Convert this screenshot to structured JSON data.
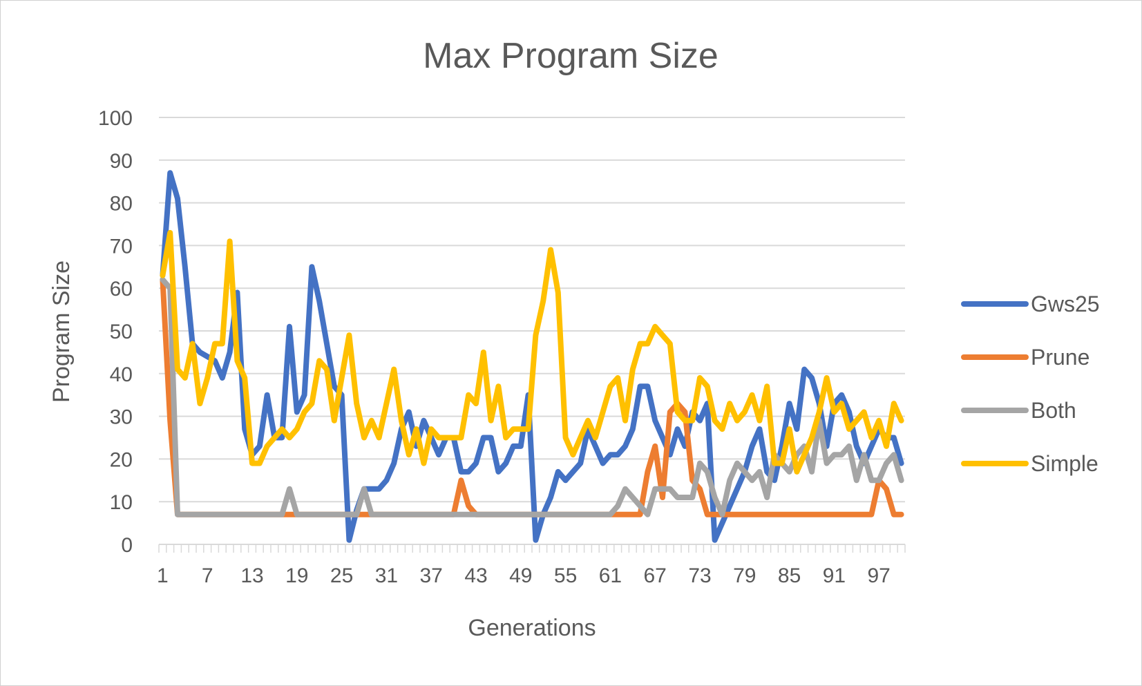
{
  "chart_data": {
    "type": "line",
    "title": "Max Program Size",
    "xlabel": "Generations",
    "ylabel": "Program Size",
    "ylim": [
      0,
      100
    ],
    "y_ticks": [
      "0",
      "10",
      "20",
      "30",
      "40",
      "50",
      "60",
      "70",
      "80",
      "90",
      "100"
    ],
    "x_range": [
      1,
      100
    ],
    "x_tick_labels": [
      "1",
      "7",
      "13",
      "19",
      "25",
      "31",
      "37",
      "43",
      "49",
      "55",
      "61",
      "67",
      "73",
      "79",
      "85",
      "91",
      "97"
    ],
    "grid": true,
    "legend_position": "right",
    "series": [
      {
        "name": "Gws25",
        "color": "#4472C4",
        "values": [
          63,
          87,
          81,
          65,
          47,
          45,
          44,
          43,
          39,
          45,
          59,
          27,
          21,
          23,
          35,
          25,
          25,
          51,
          31,
          35,
          65,
          57,
          47,
          37,
          35,
          1,
          8,
          13,
          13,
          13,
          15,
          19,
          27,
          31,
          23,
          29,
          25,
          21,
          25,
          25,
          17,
          17,
          19,
          25,
          25,
          17,
          19,
          23,
          23,
          35,
          1,
          7,
          11,
          17,
          15,
          17,
          19,
          27,
          23,
          19,
          21,
          21,
          23,
          27,
          37,
          37,
          29,
          25,
          21,
          27,
          23,
          31,
          29,
          33,
          1,
          5,
          9,
          13,
          17,
          23,
          27,
          17,
          15,
          23,
          33,
          27,
          41,
          39,
          33,
          23,
          33,
          35,
          31,
          23,
          19,
          23,
          27,
          25,
          25,
          19
        ]
      },
      {
        "name": "Prune",
        "color": "#ED7D31",
        "values": [
          62,
          29,
          7,
          7,
          7,
          7,
          7,
          7,
          7,
          7,
          7,
          7,
          7,
          7,
          7,
          7,
          7,
          7,
          7,
          7,
          7,
          7,
          7,
          7,
          7,
          7,
          7,
          7,
          7,
          7,
          7,
          7,
          7,
          7,
          7,
          7,
          7,
          7,
          7,
          7,
          15,
          9,
          7,
          7,
          7,
          7,
          7,
          7,
          7,
          7,
          7,
          7,
          7,
          7,
          7,
          7,
          7,
          7,
          7,
          7,
          7,
          7,
          7,
          7,
          7,
          17,
          23,
          11,
          31,
          33,
          31,
          15,
          13,
          7,
          7,
          7,
          7,
          7,
          7,
          7,
          7,
          7,
          7,
          7,
          7,
          7,
          7,
          7,
          7,
          7,
          7,
          7,
          7,
          7,
          7,
          7,
          15,
          13,
          7,
          7
        ]
      },
      {
        "name": "Both",
        "color": "#A5A5A5",
        "values": [
          62,
          60,
          7,
          7,
          7,
          7,
          7,
          7,
          7,
          7,
          7,
          7,
          7,
          7,
          7,
          7,
          7,
          13,
          7,
          7,
          7,
          7,
          7,
          7,
          7,
          7,
          7,
          13,
          7,
          7,
          7,
          7,
          7,
          7,
          7,
          7,
          7,
          7,
          7,
          7,
          7,
          7,
          7,
          7,
          7,
          7,
          7,
          7,
          7,
          7,
          7,
          7,
          7,
          7,
          7,
          7,
          7,
          7,
          7,
          7,
          7,
          9,
          13,
          11,
          9,
          7,
          13,
          13,
          13,
          11,
          11,
          11,
          19,
          17,
          11,
          7,
          15,
          19,
          17,
          15,
          17,
          11,
          21,
          19,
          17,
          21,
          23,
          17,
          29,
          19,
          21,
          21,
          23,
          15,
          21,
          15,
          15,
          19,
          21,
          15
        ]
      },
      {
        "name": "Simple",
        "color": "#FFC000",
        "values": [
          63,
          73,
          41,
          39,
          47,
          33,
          39,
          47,
          47,
          71,
          43,
          39,
          19,
          19,
          23,
          25,
          27,
          25,
          27,
          31,
          33,
          43,
          41,
          29,
          39,
          49,
          33,
          25,
          29,
          25,
          33,
          41,
          29,
          21,
          27,
          19,
          27,
          25,
          25,
          25,
          25,
          35,
          33,
          45,
          29,
          37,
          25,
          27,
          27,
          27,
          49,
          57,
          69,
          59,
          25,
          21,
          25,
          29,
          25,
          31,
          37,
          39,
          29,
          41,
          47,
          47,
          51,
          49,
          47,
          31,
          29,
          29,
          39,
          37,
          29,
          27,
          33,
          29,
          31,
          35,
          29,
          37,
          19,
          19,
          27,
          17,
          21,
          25,
          31,
          39,
          31,
          33,
          27,
          29,
          31,
          25,
          29,
          23,
          33,
          29
        ]
      }
    ]
  }
}
